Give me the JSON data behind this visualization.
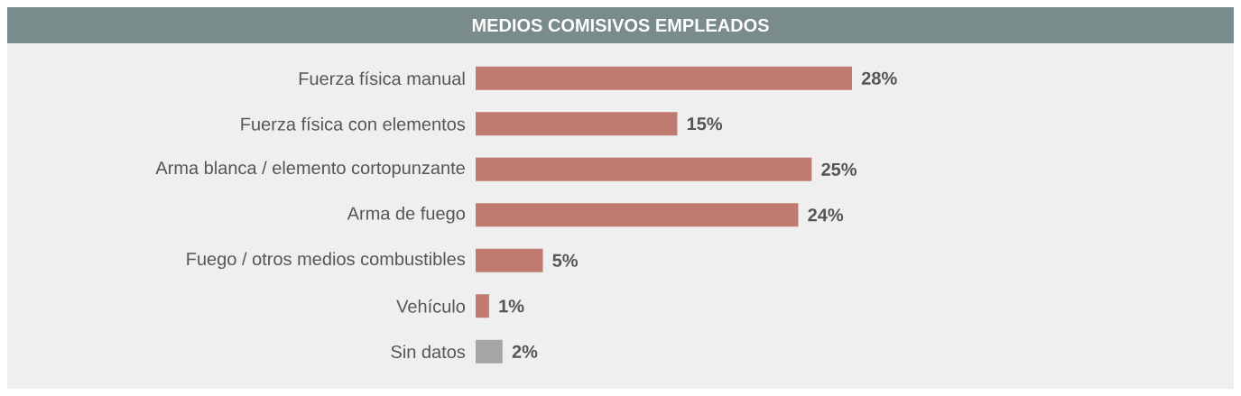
{
  "chart_data": {
    "type": "bar",
    "orientation": "horizontal",
    "title": "MEDIOS COMISIVOS EMPLEADOS",
    "categories": [
      "Fuerza física manual",
      "Fuerza física con elementos",
      "Arma blanca / elemento cortopunzante",
      "Arma de fuego",
      "Fuego / otros medios combustibles",
      "Vehículo",
      "Sin datos"
    ],
    "values": [
      28,
      15,
      25,
      24,
      5,
      1,
      2
    ],
    "colors": [
      "#c17a70",
      "#c17a70",
      "#c17a70",
      "#c17a70",
      "#c17a70",
      "#c17a70",
      "#a5a5a5"
    ],
    "value_labels": [
      "28%",
      "15%",
      "25%",
      "24%",
      "5%",
      "1%",
      "2%"
    ]
  }
}
